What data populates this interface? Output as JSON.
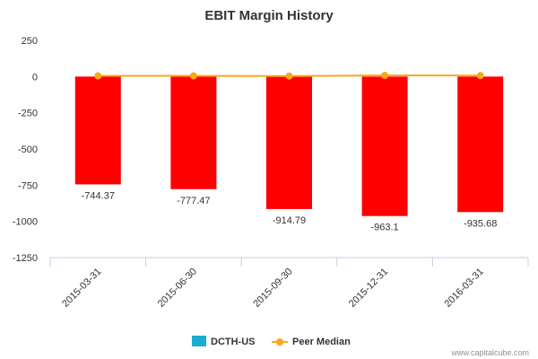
{
  "chart_data": {
    "type": "bar",
    "title": "EBIT Margin History",
    "categories": [
      "2015-03-31",
      "2015-06-30",
      "2015-09-30",
      "2015-12-31",
      "2016-03-31"
    ],
    "series": [
      {
        "name": "DCTH-US",
        "type": "bar",
        "values": [
          -744.37,
          -777.47,
          -914.79,
          -963.1,
          -935.68
        ],
        "labels": [
          "-744.37",
          "-777.47",
          "-914.79",
          "-963.1",
          "-935.68"
        ],
        "bar_color": "#ff0000",
        "legend_color": "#1aadce"
      },
      {
        "name": "Peer Median",
        "type": "line",
        "values": [
          5,
          5,
          4,
          8,
          7
        ],
        "color": "#f7a81b"
      }
    ],
    "y_ticks": [
      "250",
      "0",
      "-250",
      "-500",
      "-750",
      "-1000",
      "-1250"
    ],
    "y_tick_values": [
      250,
      0,
      -250,
      -500,
      -750,
      -1000,
      -1250
    ],
    "ylim": [
      -1250,
      250
    ],
    "xlabel": "",
    "ylabel": "",
    "legend_position": "bottom-center"
  },
  "credit": "www.capitalcube.com"
}
